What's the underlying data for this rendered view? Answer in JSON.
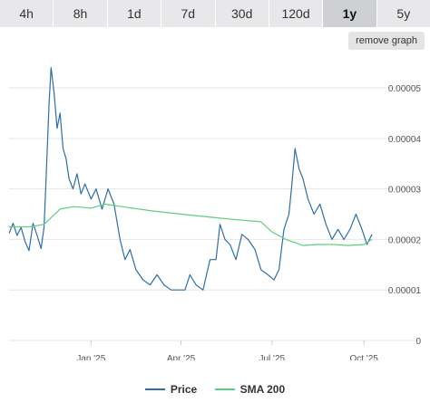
{
  "tabs": [
    {
      "label": "4h",
      "active": false
    },
    {
      "label": "8h",
      "active": false
    },
    {
      "label": "1d",
      "active": false
    },
    {
      "label": "7d",
      "active": false
    },
    {
      "label": "30d",
      "active": false
    },
    {
      "label": "120d",
      "active": false
    },
    {
      "label": "1y",
      "active": true
    },
    {
      "label": "5y",
      "active": false
    }
  ],
  "remove_graph_label": "remove graph",
  "colors": {
    "price": "#2f6fa7",
    "sma": "#5ccf7c",
    "grid": "#e6e6e6",
    "axis_text": "#555555"
  },
  "chart_data": {
    "type": "line",
    "x_range": [
      "2024-10-11",
      "2025-10-09"
    ],
    "x_tick_labels": [
      "Jan '25",
      "Apr '25",
      "Jul '25",
      "Oct '25"
    ],
    "x_ticks": [
      "2025-01-01",
      "2025-04-01",
      "2025-07-01",
      "2025-10-01"
    ],
    "ylim": [
      0,
      5.7e-05
    ],
    "y_ticks": [
      0,
      1e-05,
      2e-05,
      3e-05,
      4e-05,
      5e-05
    ],
    "y_tick_labels": [
      "0",
      "0.00001",
      "0.00002",
      "0.00003",
      "0.00004",
      "0.00005"
    ],
    "grid": "horizontal",
    "legend_position": "bottom-center",
    "series": [
      {
        "name": "Price",
        "x": [
          "2024-10-11",
          "2024-10-15",
          "2024-10-19",
          "2024-10-23",
          "2024-10-27",
          "2024-10-31",
          "2024-11-04",
          "2024-11-08",
          "2024-11-12",
          "2024-11-15",
          "2024-11-17",
          "2024-11-20",
          "2024-11-22",
          "2024-11-25",
          "2024-11-28",
          "2024-12-01",
          "2024-12-04",
          "2024-12-07",
          "2024-12-10",
          "2024-12-14",
          "2024-12-18",
          "2024-12-22",
          "2024-12-26",
          "2025-01-01",
          "2025-01-06",
          "2025-01-12",
          "2025-01-18",
          "2025-01-24",
          "2025-01-30",
          "2025-02-04",
          "2025-02-09",
          "2025-02-15",
          "2025-02-22",
          "2025-03-01",
          "2025-03-08",
          "2025-03-15",
          "2025-03-22",
          "2025-03-29",
          "2025-04-05",
          "2025-04-10",
          "2025-04-16",
          "2025-04-23",
          "2025-04-30",
          "2025-05-06",
          "2025-05-10",
          "2025-05-15",
          "2025-05-20",
          "2025-05-26",
          "2025-06-01",
          "2025-06-07",
          "2025-06-14",
          "2025-06-20",
          "2025-06-27",
          "2025-07-03",
          "2025-07-08",
          "2025-07-13",
          "2025-07-18",
          "2025-07-21",
          "2025-07-24",
          "2025-07-28",
          "2025-08-01",
          "2025-08-06",
          "2025-08-12",
          "2025-08-18",
          "2025-08-24",
          "2025-08-30",
          "2025-09-05",
          "2025-09-11",
          "2025-09-17",
          "2025-09-23",
          "2025-09-29",
          "2025-10-04",
          "2025-10-09"
        ],
        "values": [
          2.12e-05,
          2.32e-05,
          2.08e-05,
          2.24e-05,
          1.96e-05,
          1.78e-05,
          2.32e-05,
          2.08e-05,
          1.82e-05,
          2.25e-05,
          3.2e-05,
          4.7e-05,
          5.4e-05,
          4.9e-05,
          4.2e-05,
          4.5e-05,
          3.8e-05,
          3.6e-05,
          3.2e-05,
          3e-05,
          3.3e-05,
          2.9e-05,
          3.1e-05,
          2.8e-05,
          3e-05,
          2.6e-05,
          3e-05,
          2.7e-05,
          2e-05,
          1.6e-05,
          1.8e-05,
          1.4e-05,
          1.2e-05,
          1.1e-05,
          1.3e-05,
          1.1e-05,
          1e-05,
          1e-05,
          1e-05,
          1.3e-05,
          1.1e-05,
          1e-05,
          1.6e-05,
          1.6e-05,
          2.3e-05,
          2e-05,
          1.9e-05,
          1.6e-05,
          2.1e-05,
          2e-05,
          1.8e-05,
          1.4e-05,
          1.3e-05,
          1.2e-05,
          1.4e-05,
          2.2e-05,
          2.5e-05,
          3.1e-05,
          3.8e-05,
          3.4e-05,
          3.2e-05,
          2.8e-05,
          2.5e-05,
          2.7e-05,
          2.3e-05,
          2e-05,
          2.2e-05,
          2e-05,
          2.2e-05,
          2.5e-05,
          2.2e-05,
          1.9e-05,
          2.1e-05
        ]
      },
      {
        "name": "SMA 200",
        "x": [
          "2024-10-11",
          "2024-11-01",
          "2024-11-15",
          "2024-12-01",
          "2024-12-15",
          "2025-01-01",
          "2025-01-15",
          "2025-02-01",
          "2025-03-01",
          "2025-04-01",
          "2025-05-01",
          "2025-06-01",
          "2025-06-20",
          "2025-07-01",
          "2025-07-15",
          "2025-08-01",
          "2025-08-15",
          "2025-09-01",
          "2025-09-15",
          "2025-10-01",
          "2025-10-09"
        ],
        "values": [
          2.25e-05,
          2.25e-05,
          2.3e-05,
          2.6e-05,
          2.65e-05,
          2.62e-05,
          2.7e-05,
          2.65e-05,
          2.57e-05,
          2.5e-05,
          2.44e-05,
          2.38e-05,
          2.35e-05,
          2.15e-05,
          2e-05,
          1.88e-05,
          1.9e-05,
          1.9e-05,
          1.88e-05,
          1.9e-05,
          2e-05
        ]
      }
    ]
  }
}
